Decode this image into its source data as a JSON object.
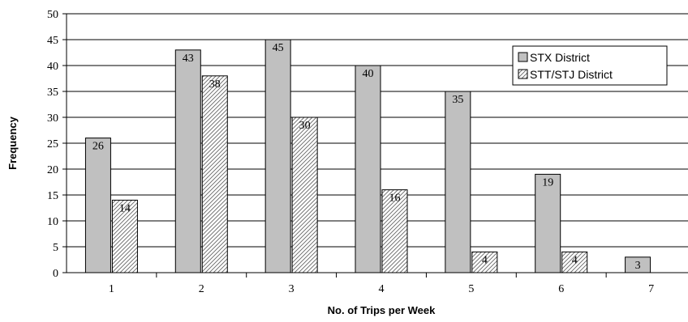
{
  "chart_data": {
    "type": "bar",
    "categories": [
      "1",
      "2",
      "3",
      "4",
      "5",
      "6",
      "7"
    ],
    "series": [
      {
        "name": "STX District",
        "values": [
          26,
          43,
          45,
          40,
          35,
          19,
          3
        ],
        "color": "#c0c0c0",
        "pattern": "solid"
      },
      {
        "name": "STT/STJ District",
        "values": [
          14,
          38,
          30,
          16,
          4,
          4,
          0
        ],
        "color": "#ffffff",
        "pattern": "diagonal-hatch"
      }
    ],
    "title": "",
    "xlabel": "No. of Trips per Week",
    "ylabel": "Frequency",
    "ylim": [
      0,
      50
    ],
    "yticks": [
      "0",
      "5",
      "10",
      "15",
      "20",
      "25",
      "30",
      "35",
      "40",
      "45",
      "50"
    ],
    "grid": true,
    "legend_position": "top-right",
    "show_data_labels": true
  }
}
